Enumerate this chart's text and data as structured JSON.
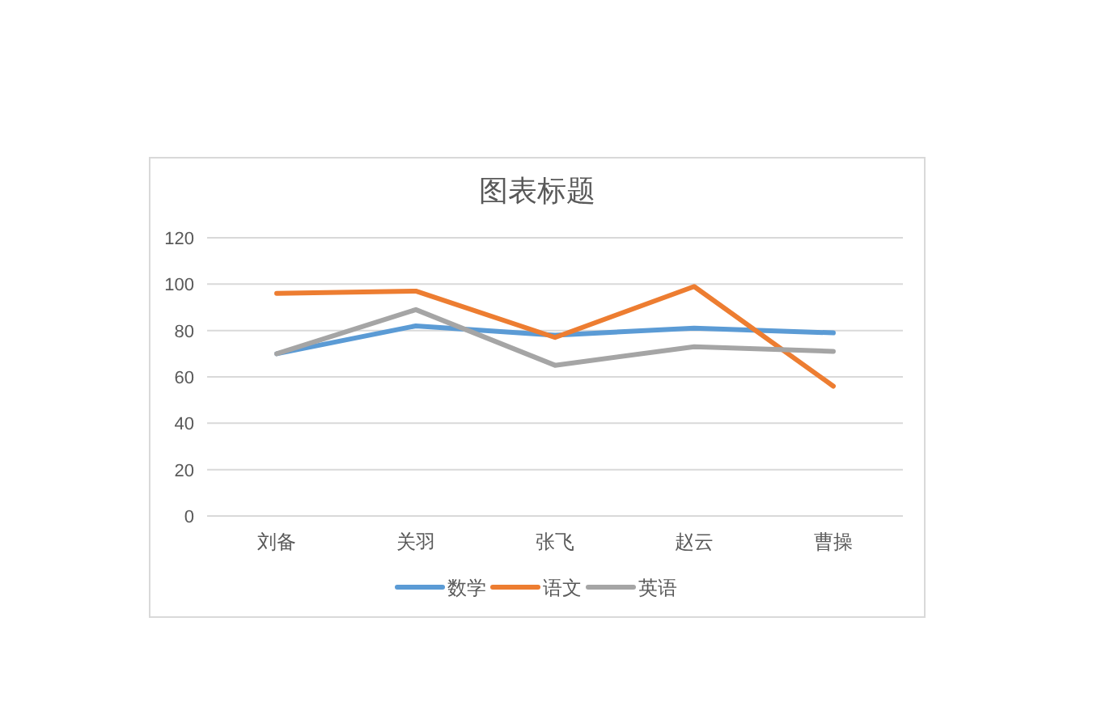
{
  "chart_data": {
    "type": "line",
    "title": "图表标题",
    "categories": [
      "刘备",
      "关羽",
      "张飞",
      "赵云",
      "曹操"
    ],
    "series": [
      {
        "name": "数学",
        "color": "#5b9bd5",
        "values": [
          70,
          82,
          78,
          81,
          79
        ]
      },
      {
        "name": "语文",
        "color": "#ed7d31",
        "values": [
          96,
          97,
          77,
          99,
          56
        ]
      },
      {
        "name": "英语",
        "color": "#a5a5a5",
        "values": [
          70,
          89,
          65,
          73,
          71
        ]
      }
    ],
    "ylim": [
      0,
      120
    ],
    "yticks": [
      0,
      20,
      40,
      60,
      80,
      100,
      120
    ],
    "grid": "y",
    "legend": "bottom"
  }
}
